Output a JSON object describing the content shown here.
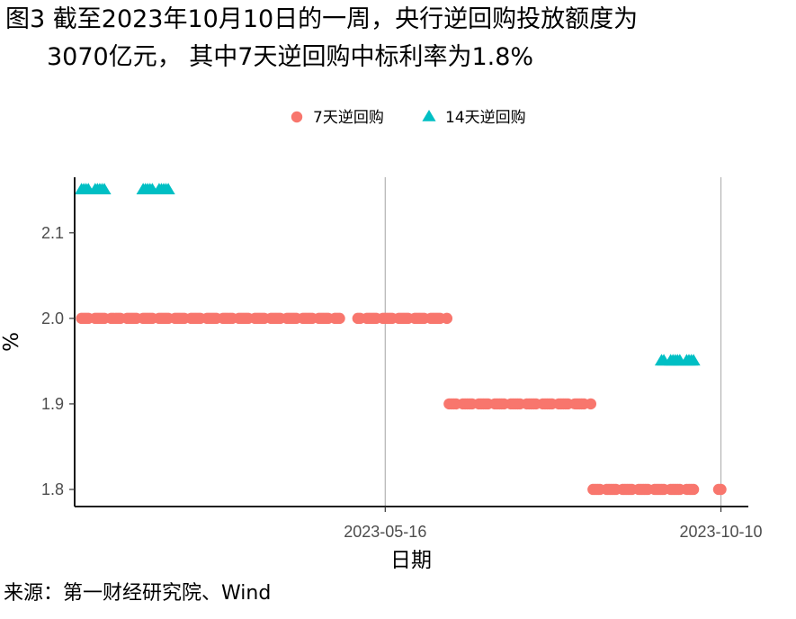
{
  "title": {
    "line1": "图3  截至2023年10月10日的一周，央行逆回购投放额度为",
    "line2": "3070亿元，  其中7天逆回购中标利率为1.8%"
  },
  "source": "来源：第一财经研究院、Wind",
  "chart_data": {
    "type": "scatter",
    "xlabel": "日期",
    "ylabel": "%",
    "ylim": [
      1.78,
      2.165
    ],
    "y_ticks": [
      "1.8",
      "1.9",
      "2.0",
      "2.1"
    ],
    "x_ticks": [
      "2023-05-16",
      "2023-10-10"
    ],
    "grid": "vertical major only",
    "legend_position": "top",
    "x_range": [
      "2022-12-31",
      "2023-10-22"
    ],
    "series": [
      {
        "name": "7天逆回购",
        "color": "#F8766D",
        "marker": "circle",
        "segments": [
          {
            "from": "2023-01-03",
            "to": "2023-01-31",
            "value": 2.0
          },
          {
            "from": "2023-02-01",
            "to": "2023-04-26",
            "value": 2.0
          },
          {
            "from": "2023-05-04",
            "to": "2023-06-12",
            "value": 2.0
          },
          {
            "from": "2023-06-13",
            "to": "2023-08-14",
            "value": 1.9
          },
          {
            "from": "2023-08-15",
            "to": "2023-09-28",
            "value": 1.8
          },
          {
            "from": "2023-10-07",
            "to": "2023-10-10",
            "value": 1.8
          }
        ]
      },
      {
        "name": "14天逆回购",
        "color": "#00BFC4",
        "marker": "triangle",
        "segments": [
          {
            "from": "2023-01-03",
            "to": "2023-01-13",
            "value": 2.15
          },
          {
            "from": "2023-01-28",
            "to": "2023-02-10",
            "value": 2.15
          },
          {
            "from": "2023-09-14",
            "to": "2023-09-28",
            "value": 1.95
          }
        ]
      }
    ]
  }
}
